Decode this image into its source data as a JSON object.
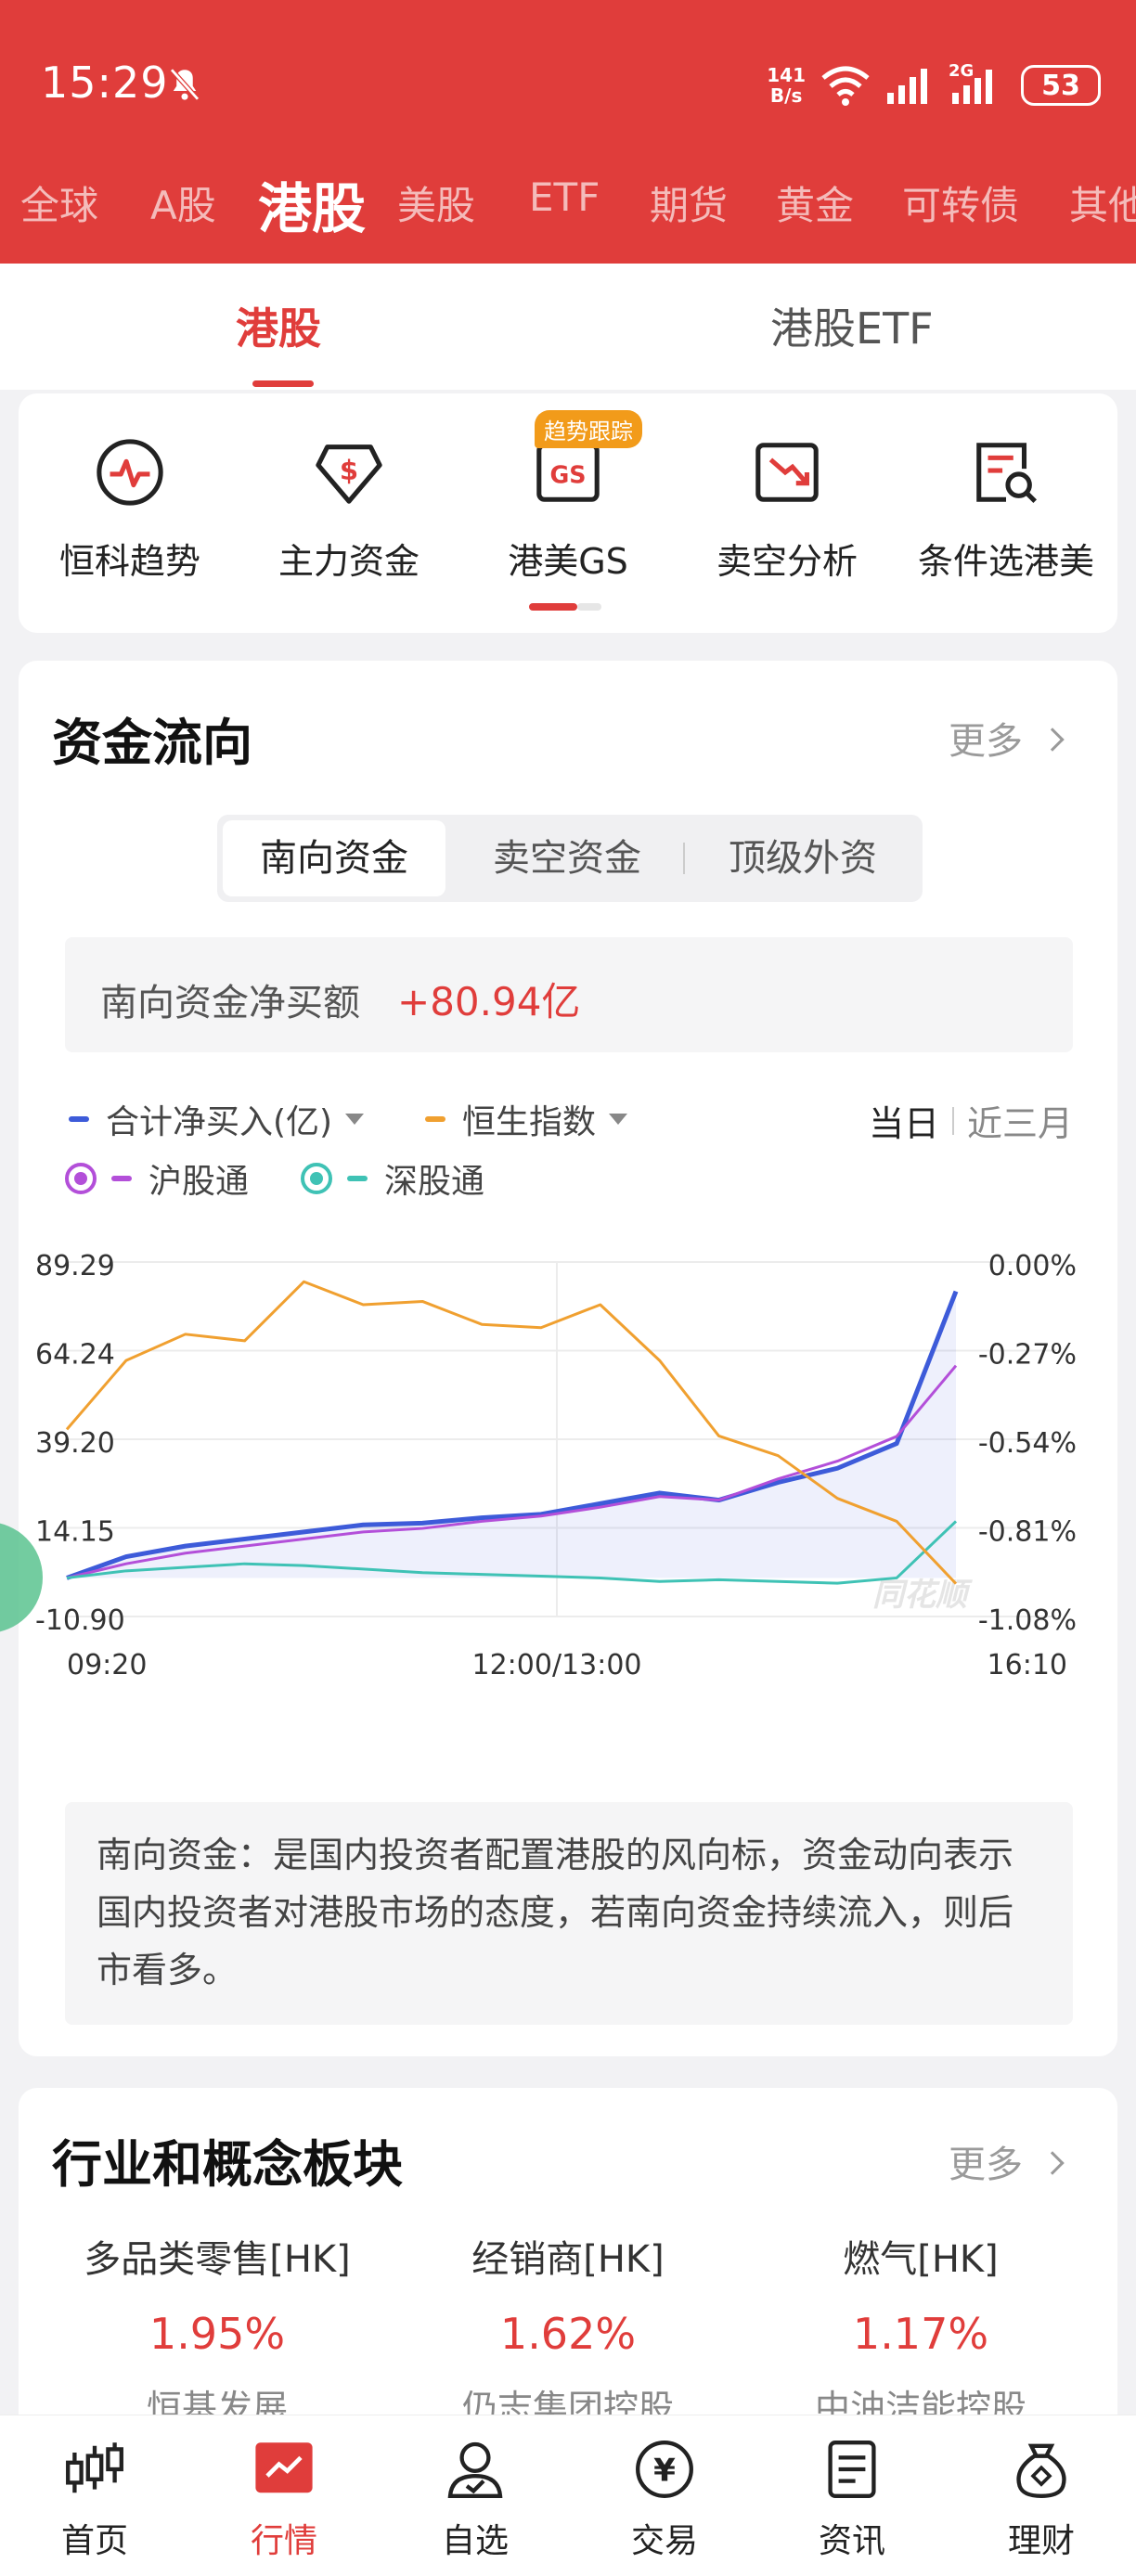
{
  "status_bar": {
    "time": "15:29",
    "net_speed_top": "141",
    "net_speed_bottom": "B/s",
    "network": "2G",
    "battery": "53"
  },
  "market_tabs": [
    "全球",
    "A股",
    "港股",
    "美股",
    "ETF",
    "期货",
    "黄金",
    "可转债",
    "其他"
  ],
  "market_active": "港股",
  "sub_tabs": [
    "港股",
    "港股ETF"
  ],
  "tools": [
    {
      "label": "恒科趋势",
      "icon": "trend-icon"
    },
    {
      "label": "主力资金",
      "icon": "money-tag-icon"
    },
    {
      "label": "港美GS",
      "icon": "gs-icon"
    },
    {
      "label": "卖空分析",
      "icon": "short-chart-icon"
    },
    {
      "label": "条件选港美",
      "icon": "filter-search-icon"
    }
  ],
  "tools_badge": "趋势跟踪",
  "fund_flow": {
    "title": "资金流向",
    "more": "更多",
    "segments": [
      "南向资金",
      "卖空资金",
      "顶级外资"
    ],
    "net_label": "南向资金净买额",
    "net_value": "+80.94亿",
    "legend": {
      "total": "合计净买入(亿)",
      "hsi": "恒生指数",
      "sh": "沪股通",
      "sz": "深股通"
    },
    "range_options": [
      "当日",
      "近三月"
    ],
    "desc": "南向资金：是国内投资者配置港股的风向标，资金动向表示国内投资者对港股市场的态度，若南向资金持续流入，则后市看多。",
    "watermark": "同花顺"
  },
  "chart_data": {
    "type": "line",
    "x_ticks": [
      "09:20",
      "12:00/13:00",
      "16:10"
    ],
    "y_left_ticks": [
      "89.29",
      "64.24",
      "39.20",
      "14.15",
      "-10.90"
    ],
    "y_right_ticks": [
      "0.00%",
      "-0.27%",
      "-0.54%",
      "-0.81%",
      "-1.08%"
    ],
    "ylim_left": [
      -10.9,
      89.29
    ],
    "ylim_right": [
      -1.08,
      0.0
    ],
    "x": [
      0,
      30,
      60,
      90,
      120,
      150,
      180,
      210,
      240,
      270,
      300,
      330,
      360,
      390,
      420,
      450
    ],
    "series": [
      {
        "name": "合计净买入(亿)",
        "axis": "left",
        "color": "#3d5bd9",
        "values": [
          0,
          6,
          9,
          11,
          13,
          15,
          15.5,
          17,
          18,
          21,
          24,
          22,
          27,
          31,
          38,
          81
        ]
      },
      {
        "name": "沪股通",
        "axis": "left",
        "color": "#b34fd9",
        "values": [
          0,
          4,
          7,
          9,
          11,
          13,
          14,
          16,
          17.5,
          20,
          23,
          22,
          28,
          33,
          40,
          60
        ]
      },
      {
        "name": "深股通",
        "axis": "left",
        "color": "#3fc2b5",
        "values": [
          0,
          2,
          3,
          4,
          3.5,
          2.5,
          1.5,
          1,
          0.5,
          0,
          -1,
          -0.5,
          -1,
          -1.5,
          0,
          16
        ]
      },
      {
        "name": "恒生指数",
        "axis": "right",
        "color": "#f0a030",
        "values": [
          -0.51,
          -0.3,
          -0.22,
          -0.24,
          -0.06,
          -0.13,
          -0.12,
          -0.19,
          -0.2,
          -0.13,
          -0.3,
          -0.53,
          -0.59,
          -0.72,
          -0.79,
          -0.98
        ]
      }
    ]
  },
  "sectors": {
    "title": "行业和概念板块",
    "more": "更多",
    "items": [
      {
        "name": "多品类零售[HK]",
        "pct": "1.95%",
        "stock": "恒基发展"
      },
      {
        "name": "经销商[HK]",
        "pct": "1.62%",
        "stock": "仍志集团控股"
      },
      {
        "name": "燃气[HK]",
        "pct": "1.17%",
        "stock": "中油洁能控股"
      }
    ]
  },
  "bottom_nav": [
    "首页",
    "行情",
    "自选",
    "交易",
    "资讯",
    "理财"
  ],
  "bottom_active": "行情",
  "colors": {
    "brand": "#e03d3b",
    "orange": "#f0a030",
    "blue": "#3d5bd9",
    "purple": "#b34fd9",
    "teal": "#3fc2b5"
  }
}
